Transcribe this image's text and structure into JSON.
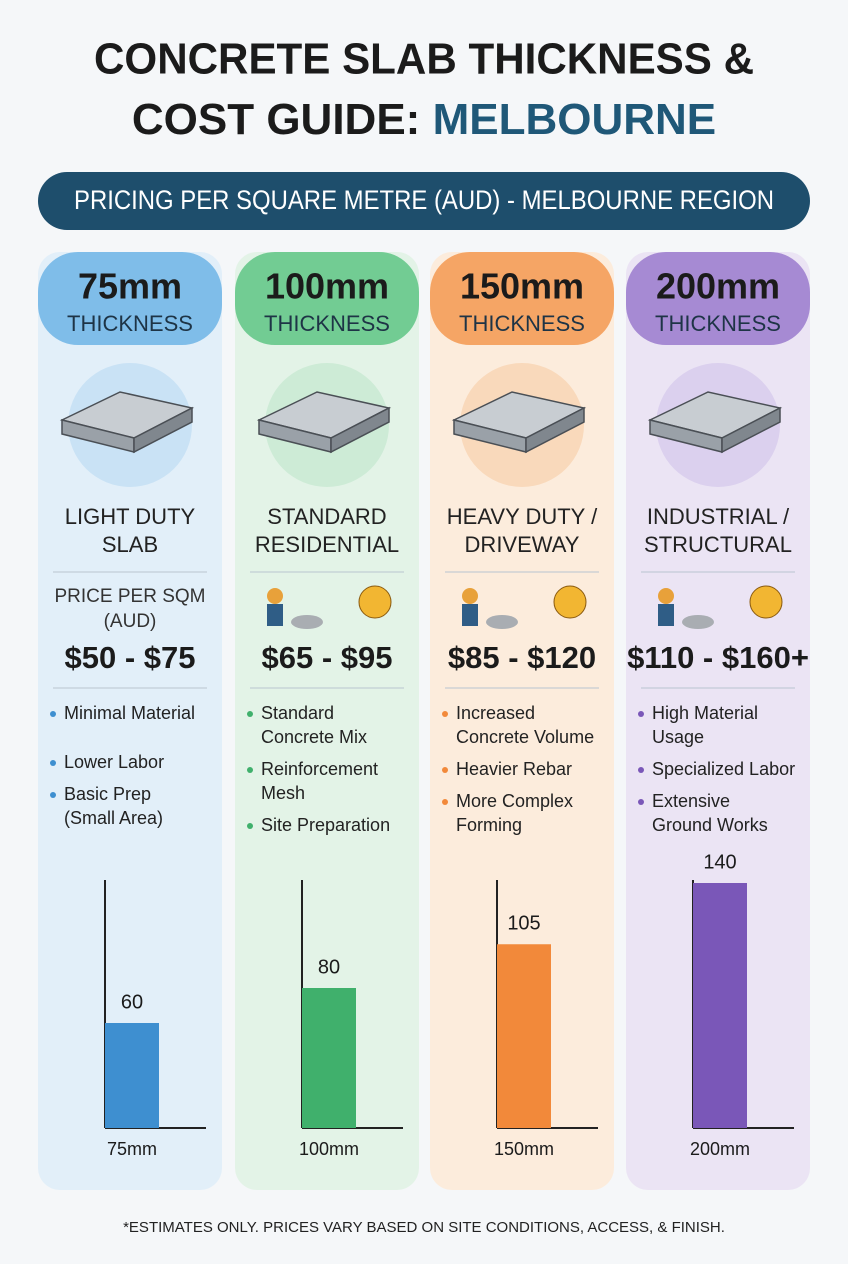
{
  "title": {
    "line1": "CONCRETE SLAB THICKNESS &",
    "line2_a": "COST GUIDE:",
    "line2_b": "MELBOURNE"
  },
  "banner": "PRICING PER SQUARE METRE (AUD) - MELBOURNE REGION",
  "columns": [
    {
      "thickness": "75mm",
      "thickness_label": "THICKNESS",
      "name": [
        "LIGHT DUTY",
        "SLAB"
      ],
      "price_label": [
        "PRICE PER SQM",
        "(AUD)"
      ],
      "price": "$50 - $75",
      "features": [
        [
          "Minimal Material"
        ],
        [
          "Lower Labor"
        ],
        [
          "Basic Prep",
          "(Small Area)"
        ]
      ],
      "bar": {
        "value": 60,
        "category": "75mm",
        "color": "#3e8fd0"
      }
    },
    {
      "thickness": "100mm",
      "thickness_label": "THICKNESS",
      "name": [
        "STANDARD",
        "RESIDENTIAL"
      ],
      "price": "$65 - $95",
      "features": [
        [
          "Standard",
          "Concrete Mix"
        ],
        [
          "Reinforcement",
          "Mesh"
        ],
        [
          "Site Preparation"
        ]
      ],
      "bar": {
        "value": 80,
        "category": "100mm",
        "color": "#40b06c"
      }
    },
    {
      "thickness": "150mm",
      "thickness_label": "THICKNESS",
      "name": [
        "HEAVY DUTY /",
        "DRIVEWAY"
      ],
      "price": "$85 - $120",
      "features": [
        [
          "Increased",
          "Concrete Volume"
        ],
        [
          "Heavier Rebar"
        ],
        [
          "More Complex",
          "Forming"
        ]
      ],
      "bar": {
        "value": 105,
        "category": "150mm",
        "color": "#f2893a"
      }
    },
    {
      "thickness": "200mm",
      "thickness_label": "THICKNESS",
      "name": [
        "INDUSTRIAL /",
        "STRUCTURAL"
      ],
      "price": "$110 - $160+",
      "features": [
        [
          "High Material",
          "Usage"
        ],
        [
          "Specialized Labor"
        ],
        [
          "Extensive",
          "Ground Works"
        ]
      ],
      "bar": {
        "value": 140,
        "category": "200mm",
        "color": "#7a57b8"
      }
    }
  ],
  "footnote": "*ESTIMATES ONLY. PRICES VARY BASED ON SITE CONDITIONS, ACCESS, & FINISH."
}
